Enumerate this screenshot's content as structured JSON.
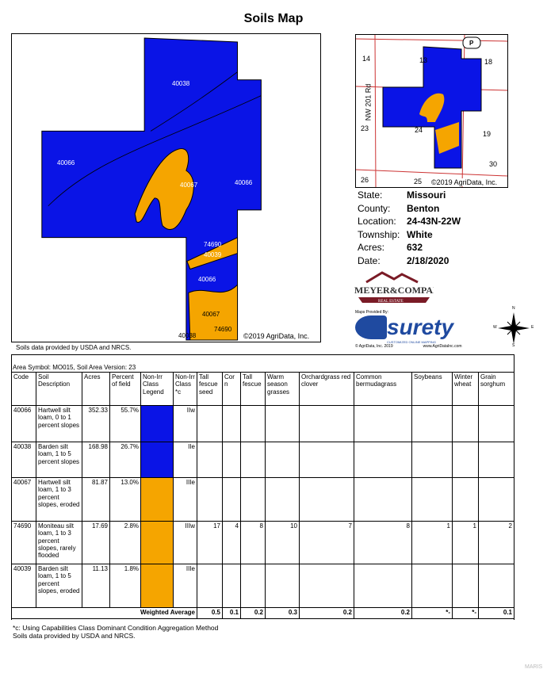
{
  "title": "Soils Map",
  "main_map": {
    "copyright": "©2019 AgriData, Inc.",
    "labels": [
      "40038",
      "40066",
      "40067",
      "40066",
      "74690",
      "40039",
      "40066",
      "40067",
      "40038",
      "74690"
    ]
  },
  "map_source": "Soils data provided by USDA and NRCS.",
  "locator_map": {
    "sections": [
      "14",
      "13",
      "18",
      "23",
      "24",
      "19",
      "26",
      "25",
      "30"
    ],
    "road": "NW 201 Rd",
    "highway": "P",
    "copyright": "©2019 AgriData, Inc."
  },
  "info": [
    {
      "k": "State:",
      "v": "Missouri"
    },
    {
      "k": "County:",
      "v": "Benton"
    },
    {
      "k": "Location:",
      "v": "24-43N-22W"
    },
    {
      "k": "Township:",
      "v": "White"
    },
    {
      "k": "Acres:",
      "v": "632"
    },
    {
      "k": "Date:",
      "v": "2/18/2020"
    }
  ],
  "broker_logo": "MEYER & COMPANY REAL ESTATE",
  "surety": {
    "provided_by": "Maps Provided By:",
    "name": "surety",
    "tagline": "CUSTOMIZED ONLINE MAPPING",
    "copyright": "© AgriData, Inc. 2019",
    "url": "www.AgriDataInc.com"
  },
  "compass": {
    "n": "N",
    "s": "S",
    "e": "E",
    "w": "W"
  },
  "table": {
    "caption": "Area Symbol: MO015, Soil Area Version: 23",
    "headers": [
      "Code",
      "Soil Description",
      "Acres",
      "Percent of field",
      "Non-Irr Class Legend",
      "Non-Irr Class *c",
      "Tall fescue seed",
      "Cor n",
      "Tall fescue",
      "Warm season grasses",
      "Orchardgrass red clover",
      "Common bermudagrass",
      "Soybeans",
      "Winter wheat",
      "Grain sorghum"
    ],
    "rows": [
      {
        "code": "40066",
        "desc": "Hartwell silt loam, 0 to 1 percent slopes",
        "acres": "352.33",
        "pct": "55.7%",
        "color": "#0a14e6",
        "cls": "IIw",
        "vals": [
          "",
          "",
          "",
          "",
          "",
          "",
          "",
          "",
          ""
        ]
      },
      {
        "code": "40038",
        "desc": "Barden silt loam, 1 to 5 percent slopes",
        "acres": "168.98",
        "pct": "26.7%",
        "color": "#0a14e6",
        "cls": "IIe",
        "vals": [
          "",
          "",
          "",
          "",
          "",
          "",
          "",
          "",
          ""
        ]
      },
      {
        "code": "40067",
        "desc": "Hartwell silt loam, 1 to 3 percent slopes, eroded",
        "acres": "81.87",
        "pct": "13.0%",
        "color": "#f5a500",
        "cls": "IIIe",
        "vals": [
          "",
          "",
          "",
          "",
          "",
          "",
          "",
          "",
          ""
        ]
      },
      {
        "code": "74690",
        "desc": "Moniteau silt loam, 1 to 3 percent slopes, rarely flooded",
        "acres": "17.69",
        "pct": "2.8%",
        "color": "#f5a500",
        "cls": "IIIw",
        "vals": [
          "17",
          "4",
          "8",
          "10",
          "7",
          "8",
          "1",
          "1",
          "2"
        ]
      },
      {
        "code": "40039",
        "desc": "Barden silt loam, 1 to 5 percent slopes, eroded",
        "acres": "11.13",
        "pct": "1.8%",
        "color": "#f5a500",
        "cls": "IIIe",
        "vals": [
          "",
          "",
          "",
          "",
          "",
          "",
          "",
          "",
          ""
        ]
      }
    ],
    "weighted_label": "Weighted Average",
    "weighted": [
      "0.5",
      "0.1",
      "0.2",
      "0.3",
      "0.2",
      "0.2",
      "*-",
      "*-",
      "0.1"
    ]
  },
  "footnotes": [
    "*c: Using Capabilities Class Dominant Condition Aggregation Method",
    "Soils data provided by USDA and NRCS."
  ],
  "watermark": "MARIS",
  "colors": {
    "class_ii": "#0a14e6",
    "class_iii": "#f5a500"
  }
}
